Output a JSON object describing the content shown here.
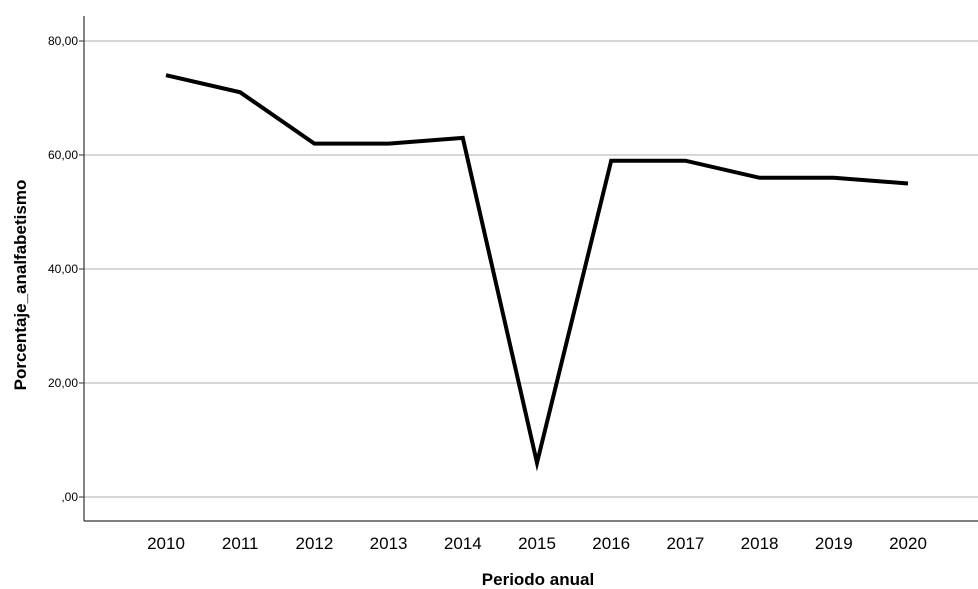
{
  "chart_data": {
    "type": "line",
    "title": "",
    "xlabel": "Periodo anual",
    "ylabel": "Porcentaje_analfabetismo",
    "categories": [
      "2010",
      "2011",
      "2012",
      "2013",
      "2014",
      "2015",
      "2016",
      "2017",
      "2018",
      "2019",
      "2020"
    ],
    "series": [
      {
        "values": [
          74,
          71,
          62,
          62,
          63,
          6,
          59,
          59,
          56,
          56,
          55
        ],
        "color": "#000000"
      }
    ],
    "ylim": [
      0,
      80
    ],
    "yticks": [
      0,
      20,
      40,
      60,
      80
    ],
    "ytick_labels": [
      ",00",
      "20,00",
      "40,00",
      "60,00",
      "80,00"
    ],
    "grid": "horizontal",
    "legend": "none"
  }
}
